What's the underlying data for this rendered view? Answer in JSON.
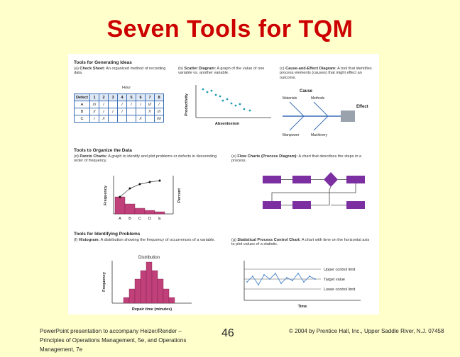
{
  "slide": {
    "title": "Seven Tools for TQM",
    "page_number": "46",
    "footer_left": "PowerPoint presentation to accompany Heizer/Render – Principles of Operations Management, 5e, and Operations Management, 7e",
    "footer_right": "© 2004 by Prentice Hall, Inc., Upper Saddle River, N.J. 07458"
  },
  "figure": {
    "section1": "Tools for Generating Ideas",
    "section2": "Tools to Organize the Data",
    "section3": "Tools for Identifying Problems",
    "a": {
      "tag": "(a)",
      "name": "Check Sheet:",
      "desc": "An organized method of recording data."
    },
    "b": {
      "tag": "(b)",
      "name": "Scatter Diagram:",
      "desc": "A graph of the value of one variable vs. another variable.",
      "ylabel": "Productivity",
      "xlabel": "Absenteeism"
    },
    "c": {
      "tag": "(c)",
      "name": "Cause-and-Effect Diagram:",
      "desc": "A tool that identifies process elements (causes) that might effect an outcome.",
      "cause": "Cause",
      "effect": "Effect",
      "materials": "Materials",
      "methods": "Methods",
      "manpower": "Manpower",
      "machinery": "Machinery"
    },
    "d": {
      "tag": "(d)",
      "name": "Pareto Charts:",
      "desc": "A graph to identify and plot problems or defects in descending order of frequency.",
      "ylabel": "Frequency",
      "y2label": "Percent",
      "categories": [
        "A",
        "B",
        "C",
        "D",
        "E"
      ]
    },
    "e": {
      "tag": "(e)",
      "name": "Flow Charts (Process Diagram):",
      "desc": "A chart that describes the steps in a process."
    },
    "f": {
      "tag": "(f)",
      "name": "Histogram:",
      "desc": "A distribution showing the frequency of occurrences of a variable.",
      "title": "Distribution",
      "ylabel": "Frequency",
      "xlabel": "Repair time (minutes)"
    },
    "g": {
      "tag": "(g)",
      "name": "Statistical Process Control Chart:",
      "desc": "A chart with time on the horizontal axis to plot values of a statistic.",
      "ucl": "Upper control limit",
      "target": "Target value",
      "lcl": "Lower control limit",
      "xlabel": "Time"
    },
    "check_sheet": {
      "hour_label": "Hour",
      "header": [
        "Defect",
        "1",
        "2",
        "3",
        "4",
        "5",
        "6",
        "7",
        "8"
      ],
      "rows": [
        [
          "A",
          "///",
          "/",
          "",
          "/",
          "/",
          "/",
          "///",
          "/"
        ],
        [
          "B",
          "//",
          "/",
          "/",
          "/",
          "",
          "",
          "//",
          "///"
        ],
        [
          "C",
          "/",
          "//",
          "",
          "",
          "",
          "//",
          "",
          "////"
        ]
      ]
    },
    "colors": {
      "title": "#cc0000",
      "accent": "#3b6fb6",
      "pareto_bar": "#c0407a",
      "flow": "#7b2fa0",
      "spc_line": "#5a8fd0",
      "fishbone": "#3b6fb6"
    }
  }
}
